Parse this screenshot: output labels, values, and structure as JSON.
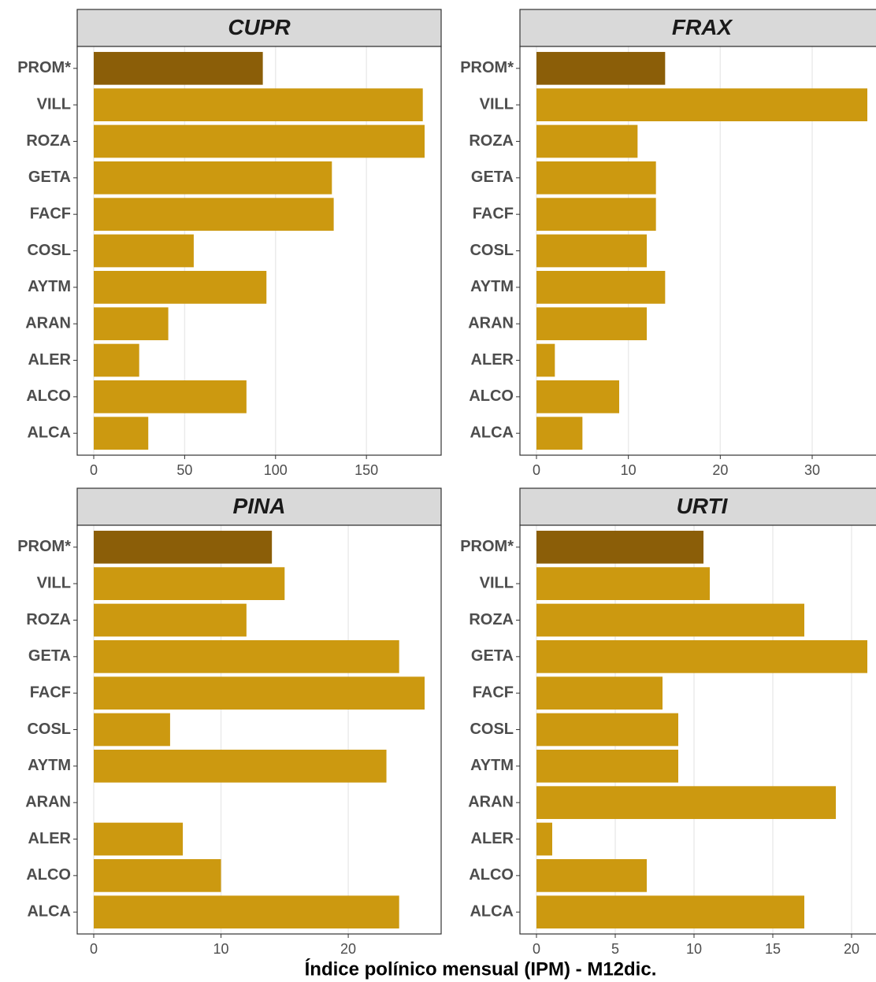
{
  "xlabel": "Índice polínico mensual (IPM) - M12dic.",
  "chart_data": [
    {
      "type": "bar",
      "orientation": "horizontal",
      "title": "CUPR",
      "categories": [
        "PROM*",
        "VILL",
        "ROZA",
        "GETA",
        "FACF",
        "COSL",
        "AYTM",
        "ARAN",
        "ALER",
        "ALCO",
        "ALCA"
      ],
      "values": [
        93,
        181,
        182,
        131,
        132,
        55,
        95,
        41,
        25,
        84,
        30
      ],
      "colors": [
        "#8b5e08",
        "#cc9910",
        "#cc9910",
        "#cc9910",
        "#cc9910",
        "#cc9910",
        "#cc9910",
        "#cc9910",
        "#cc9910",
        "#cc9910",
        "#cc9910"
      ],
      "xlim": [
        -9.1,
        191.1
      ],
      "xticks": [
        0,
        50,
        100,
        150
      ],
      "grid": true
    },
    {
      "type": "bar",
      "orientation": "horizontal",
      "title": "FRAX",
      "categories": [
        "PROM*",
        "VILL",
        "ROZA",
        "GETA",
        "FACF",
        "COSL",
        "AYTM",
        "ARAN",
        "ALER",
        "ALCO",
        "ALCA"
      ],
      "values": [
        14,
        36,
        11,
        13,
        13,
        12,
        14,
        12,
        2,
        9,
        5
      ],
      "colors": [
        "#8b5e08",
        "#cc9910",
        "#cc9910",
        "#cc9910",
        "#cc9910",
        "#cc9910",
        "#cc9910",
        "#cc9910",
        "#cc9910",
        "#cc9910",
        "#cc9910"
      ],
      "xlim": [
        -1.8,
        37.8
      ],
      "xticks": [
        0,
        10,
        20,
        30
      ],
      "grid": true
    },
    {
      "type": "bar",
      "orientation": "horizontal",
      "title": "PINA",
      "categories": [
        "PROM*",
        "VILL",
        "ROZA",
        "GETA",
        "FACF",
        "COSL",
        "AYTM",
        "ARAN",
        "ALER",
        "ALCO",
        "ALCA"
      ],
      "values": [
        14,
        15,
        12,
        24,
        26,
        6,
        23,
        0,
        7,
        10,
        24
      ],
      "colors": [
        "#8b5e08",
        "#cc9910",
        "#cc9910",
        "#cc9910",
        "#cc9910",
        "#cc9910",
        "#cc9910",
        "#cc9910",
        "#cc9910",
        "#cc9910",
        "#cc9910"
      ],
      "xlim": [
        -1.3,
        27.3
      ],
      "xticks": [
        0,
        10,
        20
      ],
      "grid": true
    },
    {
      "type": "bar",
      "orientation": "horizontal",
      "title": "URTI",
      "categories": [
        "PROM*",
        "VILL",
        "ROZA",
        "GETA",
        "FACF",
        "COSL",
        "AYTM",
        "ARAN",
        "ALER",
        "ALCO",
        "ALCA"
      ],
      "values": [
        10.6,
        11,
        17,
        21,
        8,
        9,
        9,
        19,
        1,
        7,
        17
      ],
      "colors": [
        "#8b5e08",
        "#cc9910",
        "#cc9910",
        "#cc9910",
        "#cc9910",
        "#cc9910",
        "#cc9910",
        "#cc9910",
        "#cc9910",
        "#cc9910",
        "#cc9910"
      ],
      "xlim": [
        -1.05,
        22.05
      ],
      "xticks": [
        0,
        5,
        10,
        15,
        20
      ],
      "grid": true
    }
  ]
}
